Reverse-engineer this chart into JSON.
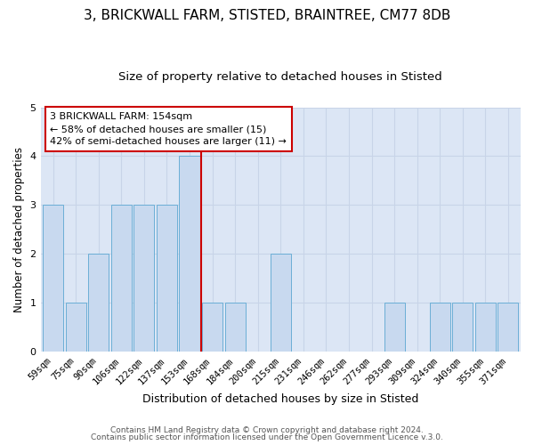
{
  "title_line1": "3, BRICKWALL FARM, STISTED, BRAINTREE, CM77 8DB",
  "title_line2": "Size of property relative to detached houses in Stisted",
  "xlabel": "Distribution of detached houses by size in Stisted",
  "ylabel": "Number of detached properties",
  "bar_labels": [
    "59sqm",
    "75sqm",
    "90sqm",
    "106sqm",
    "122sqm",
    "137sqm",
    "153sqm",
    "168sqm",
    "184sqm",
    "200sqm",
    "215sqm",
    "231sqm",
    "246sqm",
    "262sqm",
    "277sqm",
    "293sqm",
    "309sqm",
    "324sqm",
    "340sqm",
    "355sqm",
    "371sqm"
  ],
  "bar_heights": [
    3,
    1,
    2,
    3,
    3,
    3,
    4,
    1,
    1,
    0,
    2,
    0,
    0,
    0,
    0,
    1,
    0,
    1,
    1,
    1,
    1
  ],
  "bar_color": "#c8d9ef",
  "bar_edgecolor": "#6baed6",
  "grid_color": "#c8d4e8",
  "plot_bg_color": "#dce6f5",
  "fig_bg_color": "#ffffff",
  "vline_color": "#cc0000",
  "vline_x": 6.5,
  "annotation_text": "3 BRICKWALL FARM: 154sqm\n← 58% of detached houses are smaller (15)\n42% of semi-detached houses are larger (11) →",
  "annotation_box_edgecolor": "#cc0000",
  "annotation_box_facecolor": "#ffffff",
  "ylim": [
    0,
    5
  ],
  "yticks": [
    0,
    1,
    2,
    3,
    4,
    5
  ],
  "footer_line1": "Contains HM Land Registry data © Crown copyright and database right 2024.",
  "footer_line2": "Contains public sector information licensed under the Open Government Licence v.3.0.",
  "title1_fontsize": 11,
  "title2_fontsize": 9.5,
  "xlabel_fontsize": 9,
  "ylabel_fontsize": 8.5,
  "tick_fontsize": 7.5,
  "annotation_fontsize": 8,
  "footer_fontsize": 6.5
}
